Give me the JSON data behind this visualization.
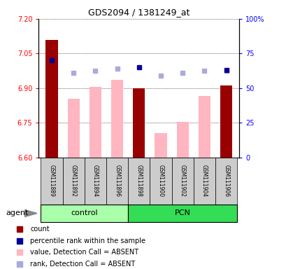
{
  "title": "GDS2094 / 1381249_at",
  "samples": [
    "GSM111889",
    "GSM111892",
    "GSM111894",
    "GSM111896",
    "GSM111898",
    "GSM111900",
    "GSM111902",
    "GSM111904",
    "GSM111906"
  ],
  "count_values": [
    7.11,
    null,
    null,
    null,
    6.9,
    null,
    null,
    null,
    6.91
  ],
  "absent_value": [
    null,
    6.855,
    6.905,
    6.935,
    null,
    6.705,
    6.755,
    6.865,
    null
  ],
  "rank_absent": [
    null,
    6.965,
    6.975,
    6.985,
    null,
    6.955,
    6.965,
    6.975,
    6.975
  ],
  "percentile_vals_right": [
    70,
    null,
    null,
    null,
    65,
    null,
    null,
    null,
    63
  ],
  "ylim": [
    6.6,
    7.2
  ],
  "yticks_left": [
    6.6,
    6.75,
    6.9,
    7.05,
    7.2
  ],
  "yticks_right": [
    0,
    25,
    50,
    75,
    100
  ],
  "bar_color_dark": "#990000",
  "bar_color_light": "#FFB6C1",
  "rank_absent_color": "#AAAADD",
  "percentile_color_dark": "#000099",
  "control_color": "#AAFFAA",
  "pcn_color": "#33DD55",
  "group_label_control": "control",
  "group_label_pcn": "PCN",
  "agent_label": "agent",
  "legend_count": "count",
  "legend_percentile": "percentile rank within the sample",
  "legend_value_absent": "value, Detection Call = ABSENT",
  "legend_rank_absent": "rank, Detection Call = ABSENT",
  "sample_box_color": "#CCCCCC"
}
